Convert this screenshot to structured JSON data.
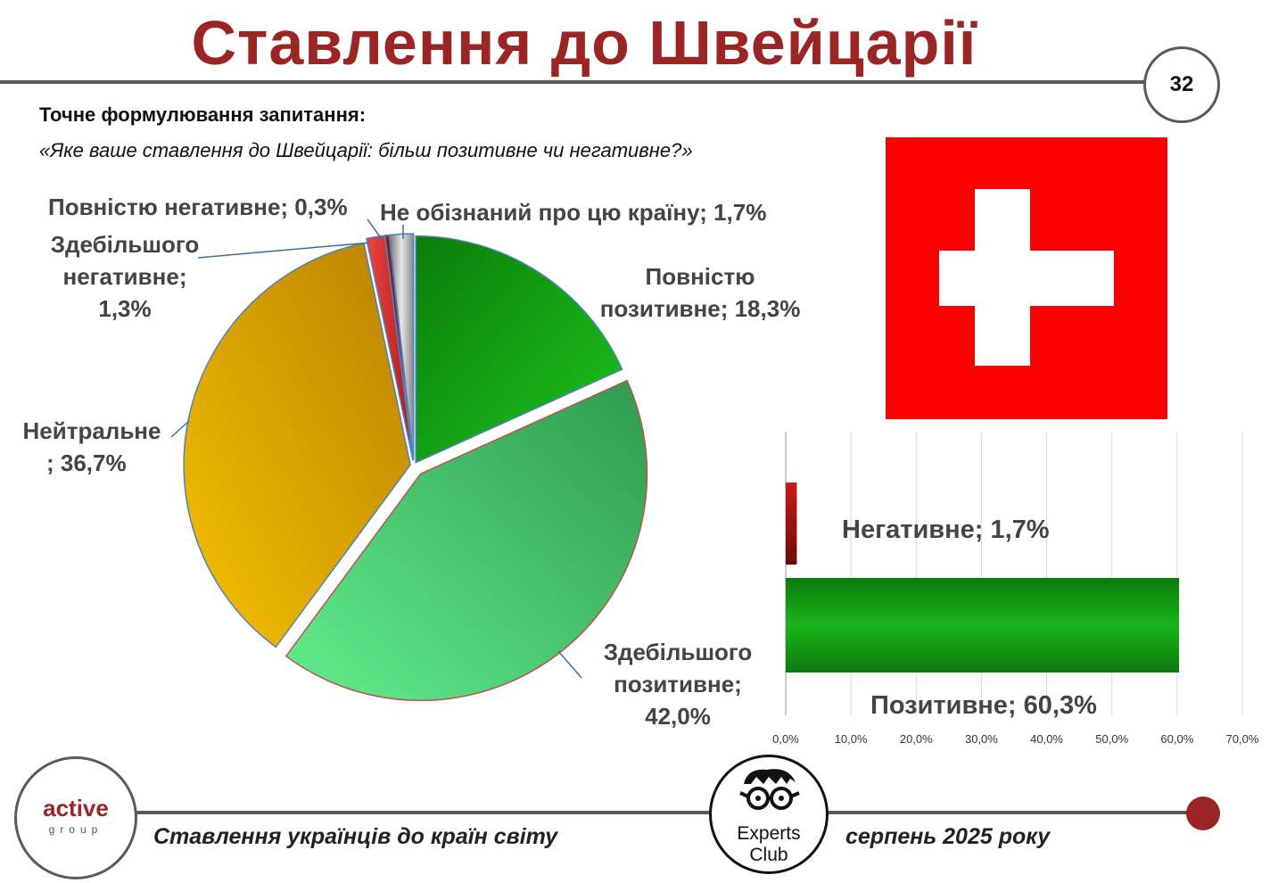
{
  "header": {
    "title": "Ставлення до Швейцарії",
    "page_number": "32"
  },
  "question": {
    "label": "Точне формулювання запитання:",
    "text": "«Яке ваше ставлення до Швейцарії: більш позитивне чи негативне?»"
  },
  "flag": {
    "background": "#fe0000",
    "cross": "#ffffff"
  },
  "labels": {
    "not_aware": "Не обізнаний про цю країну; 1,7%",
    "fully_negative": "Повністю негативне; 0,3%",
    "mostly_negative_l1": "Здебільшого",
    "mostly_negative_l2": "негативне;",
    "mostly_negative_l3": "1,3%",
    "fully_positive_l1": "Повністю",
    "fully_positive_l2": "позитивне; 18,3%",
    "neutral_l1": "Нейтральне",
    "neutral_l2": "; 36,7%",
    "mostly_positive_l1": "Здебільшого",
    "mostly_positive_l2": "позитивне;",
    "mostly_positive_l3": "42,0%",
    "bar_negative": "Негативне; 1,7%",
    "bar_positive": "Позитивне; 60,3%"
  },
  "chart_data": [
    {
      "type": "pie",
      "slices": [
        {
          "name": "Повністю позитивне",
          "value": 18.3,
          "color": "#14a614"
        },
        {
          "name": "Здебільшого позитивне",
          "value": 42.0,
          "color": "#4fd476"
        },
        {
          "name": "Нейтральне",
          "value": 36.7,
          "color": "#e0a800"
        },
        {
          "name": "Здебільшого негативне",
          "value": 1.3,
          "color": "#d92b2b"
        },
        {
          "name": "Повністю негативне",
          "value": 0.3,
          "color": "#8b1a1a"
        },
        {
          "name": "Не обізнаний про цю країну",
          "value": 1.7,
          "color": "#a6a6a6"
        }
      ]
    },
    {
      "type": "bar",
      "orientation": "horizontal",
      "categories": [
        "Негативне",
        "Позитивне"
      ],
      "values": [
        1.7,
        60.3
      ],
      "colors": [
        "#b01010",
        "#18a818"
      ],
      "xlim": [
        0,
        70
      ],
      "xticks": [
        "0,0%",
        "10,0%",
        "20,0%",
        "30,0%",
        "40,0%",
        "50,0%",
        "60,0%",
        "70,0%"
      ],
      "grid": true
    }
  ],
  "footer": {
    "logo_left_1": "active",
    "logo_left_2": "group",
    "logo_center_1": "Experts",
    "logo_center_2": "Club",
    "survey_title": "Ставлення українців до країн світу",
    "date": "серпень 2025 року"
  }
}
